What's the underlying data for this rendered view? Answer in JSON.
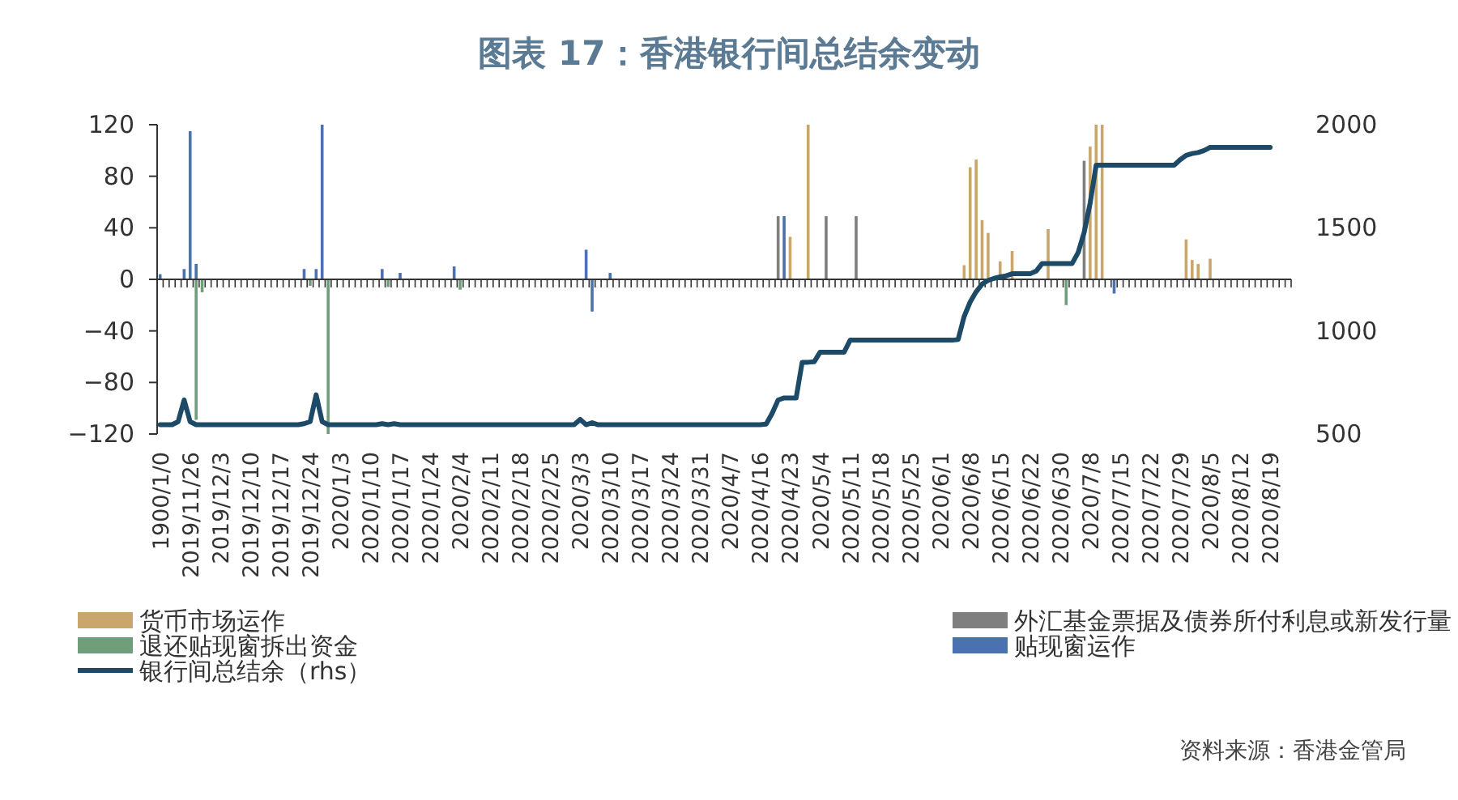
{
  "chart_data": {
    "type": "bar",
    "title": "图表 17：香港银行间总结余变动",
    "categories": [
      "1900/1/0",
      null,
      null,
      null,
      null,
      "2019/11/26",
      null,
      null,
      null,
      null,
      "2019/12/3",
      null,
      null,
      null,
      null,
      "2019/12/10",
      null,
      null,
      null,
      null,
      "2019/12/17",
      null,
      null,
      null,
      null,
      "2019/12/24",
      null,
      null,
      null,
      null,
      "2020/1/3",
      null,
      null,
      null,
      null,
      "2020/1/10",
      null,
      null,
      null,
      null,
      "2020/1/17",
      null,
      null,
      null,
      null,
      "2020/1/24",
      null,
      null,
      null,
      null,
      "2020/2/4",
      null,
      null,
      null,
      null,
      "2020/2/11",
      null,
      null,
      null,
      null,
      "2020/2/18",
      null,
      null,
      null,
      null,
      "2020/2/25",
      null,
      null,
      null,
      null,
      "2020/3/3",
      null,
      null,
      null,
      null,
      "2020/3/10",
      null,
      null,
      null,
      null,
      "2020/3/17",
      null,
      null,
      null,
      null,
      "2020/3/24",
      null,
      null,
      null,
      null,
      "2020/3/31",
      null,
      null,
      null,
      null,
      "2020/4/7",
      null,
      null,
      null,
      null,
      "2020/4/16",
      null,
      null,
      null,
      null,
      "2020/4/23",
      null,
      null,
      null,
      null,
      "2020/5/4",
      null,
      null,
      null,
      null,
      "2020/5/11",
      null,
      null,
      null,
      null,
      "2020/5/18",
      null,
      null,
      null,
      null,
      "2020/5/25",
      null,
      null,
      null,
      null,
      "2020/6/1",
      null,
      null,
      null,
      null,
      "2020/6/8",
      null,
      null,
      null,
      null,
      "2020/6/15",
      null,
      null,
      null,
      null,
      "2020/6/22",
      null,
      null,
      null,
      null,
      "2020/6/30",
      null,
      null,
      null,
      null,
      "2020/7/8",
      null,
      null,
      null,
      null,
      "2020/7/15",
      null,
      null,
      null,
      null,
      "2020/7/22",
      null,
      null,
      null,
      null,
      "2020/7/29",
      null,
      null,
      null,
      null,
      "2020/8/5",
      null,
      null,
      null,
      null,
      "2020/8/12",
      null,
      null,
      null,
      null,
      "2020/8/19",
      null,
      null,
      null
    ],
    "series": [
      {
        "name": "货币市场运作",
        "color": "#c9a66b",
        "values": [
          null,
          null,
          null,
          null,
          null,
          null,
          null,
          null,
          null,
          null,
          null,
          null,
          null,
          null,
          null,
          null,
          null,
          null,
          null,
          null,
          null,
          null,
          null,
          null,
          null,
          null,
          null,
          null,
          null,
          null,
          null,
          null,
          null,
          null,
          null,
          null,
          null,
          null,
          null,
          null,
          null,
          null,
          null,
          null,
          null,
          null,
          null,
          null,
          null,
          null,
          null,
          null,
          null,
          null,
          null,
          null,
          null,
          null,
          null,
          null,
          null,
          null,
          null,
          null,
          null,
          null,
          null,
          null,
          null,
          null,
          null,
          null,
          null,
          null,
          null,
          null,
          null,
          null,
          null,
          null,
          null,
          null,
          null,
          null,
          null,
          null,
          null,
          null,
          null,
          null,
          null,
          null,
          null,
          null,
          null,
          null,
          null,
          null,
          null,
          null,
          null,
          null,
          null,
          null,
          null,
          33,
          null,
          null,
          120,
          null,
          null,
          null,
          null,
          null,
          null,
          null,
          null,
          null,
          null,
          null,
          null,
          null,
          null,
          null,
          null,
          null,
          null,
          null,
          null,
          null,
          null,
          null,
          null,
          null,
          11,
          87,
          93,
          46,
          36,
          null,
          14,
          null,
          22,
          null,
          null,
          null,
          null,
          null,
          39,
          null,
          null,
          null,
          null,
          null,
          null,
          103,
          120,
          120,
          null,
          null,
          null,
          null,
          null,
          null,
          null,
          null,
          null,
          null,
          null,
          null,
          null,
          31,
          15,
          12,
          null,
          16,
          null,
          null,
          null,
          null,
          null,
          null,
          null,
          null,
          null,
          null,
          null,
          null,
          null
        ]
      },
      {
        "name": "外汇基金票据及债券所付利息或新发行量",
        "color": "#7f7f7f",
        "values": [
          null,
          null,
          null,
          null,
          null,
          null,
          null,
          null,
          null,
          null,
          null,
          null,
          null,
          null,
          null,
          null,
          null,
          null,
          null,
          null,
          null,
          null,
          null,
          null,
          null,
          null,
          null,
          null,
          null,
          null,
          null,
          null,
          null,
          null,
          null,
          null,
          null,
          null,
          null,
          null,
          null,
          null,
          null,
          null,
          null,
          null,
          null,
          null,
          null,
          null,
          null,
          null,
          null,
          null,
          null,
          null,
          null,
          null,
          null,
          null,
          null,
          null,
          null,
          null,
          null,
          null,
          null,
          null,
          null,
          null,
          null,
          null,
          null,
          null,
          null,
          null,
          null,
          null,
          null,
          null,
          null,
          null,
          null,
          null,
          null,
          null,
          null,
          null,
          null,
          null,
          null,
          null,
          null,
          null,
          null,
          null,
          null,
          null,
          null,
          null,
          null,
          null,
          null,
          49,
          null,
          null,
          null,
          null,
          null,
          null,
          null,
          49,
          null,
          null,
          null,
          null,
          49,
          null,
          null,
          null,
          null,
          null,
          null,
          null,
          null,
          null,
          null,
          null,
          null,
          null,
          null,
          null,
          null,
          null,
          null,
          null,
          null,
          null,
          null,
          null,
          null,
          null,
          null,
          null,
          null,
          null,
          null,
          null,
          null,
          null,
          null,
          null,
          null,
          null,
          92,
          null,
          null,
          null,
          null,
          null,
          null,
          null,
          null,
          null,
          null,
          null,
          null,
          null,
          null,
          null,
          null,
          null,
          null,
          null,
          null,
          null,
          null,
          null,
          null,
          null,
          null,
          null,
          null,
          null,
          null,
          null,
          null,
          null,
          null
        ]
      },
      {
        "name": "退还贴现窗拆出资金",
        "color": "#6f9e7a",
        "values": [
          null,
          null,
          null,
          null,
          null,
          null,
          -109,
          -10,
          null,
          null,
          null,
          null,
          null,
          null,
          null,
          null,
          null,
          null,
          null,
          null,
          null,
          null,
          null,
          null,
          null,
          -5,
          null,
          null,
          -120,
          null,
          null,
          null,
          null,
          null,
          null,
          null,
          null,
          null,
          -6,
          null,
          null,
          null,
          null,
          null,
          null,
          null,
          null,
          null,
          null,
          null,
          -8,
          null,
          null,
          null,
          null,
          null,
          null,
          null,
          null,
          null,
          null,
          null,
          null,
          null,
          null,
          null,
          null,
          null,
          null,
          null,
          null,
          null,
          null,
          null,
          null,
          null,
          null,
          null,
          null,
          null,
          null,
          null,
          null,
          null,
          null,
          null,
          null,
          null,
          null,
          null,
          null,
          null,
          null,
          null,
          null,
          null,
          null,
          null,
          null,
          null,
          null,
          null,
          null,
          null,
          null,
          null,
          null,
          null,
          null,
          null,
          null,
          null,
          null,
          null,
          null,
          null,
          null,
          null,
          null,
          null,
          null,
          null,
          null,
          null,
          null,
          null,
          null,
          null,
          null,
          null,
          null,
          null,
          null,
          null,
          null,
          null,
          null,
          null,
          null,
          null,
          null,
          null,
          null,
          null,
          null,
          null,
          null,
          null,
          null,
          null,
          null,
          -20,
          null,
          null,
          null,
          null,
          null,
          null,
          null,
          null,
          null,
          null,
          null,
          null,
          null,
          null,
          null,
          null,
          null,
          null,
          null,
          null,
          null,
          null,
          null,
          null,
          null,
          null,
          null,
          null,
          null,
          null,
          null,
          null,
          null,
          null,
          null,
          null,
          null
        ]
      },
      {
        "name": "贴现窗运作",
        "color": "#4a72b0",
        "values": [
          4,
          null,
          null,
          null,
          8,
          115,
          12,
          null,
          null,
          null,
          null,
          null,
          null,
          null,
          null,
          null,
          null,
          null,
          null,
          null,
          null,
          null,
          null,
          null,
          8,
          null,
          8,
          120,
          null,
          null,
          null,
          null,
          null,
          null,
          null,
          null,
          null,
          8,
          null,
          null,
          5,
          null,
          null,
          null,
          null,
          null,
          null,
          null,
          null,
          10,
          null,
          null,
          null,
          null,
          null,
          null,
          null,
          null,
          null,
          null,
          null,
          null,
          null,
          null,
          null,
          null,
          null,
          null,
          null,
          null,
          null,
          23,
          -25,
          null,
          null,
          5,
          null,
          null,
          null,
          null,
          null,
          null,
          null,
          null,
          null,
          null,
          null,
          null,
          null,
          null,
          null,
          null,
          null,
          null,
          null,
          null,
          null,
          null,
          null,
          null,
          null,
          null,
          null,
          null,
          49,
          null,
          null,
          null,
          null,
          null,
          null,
          null,
          null,
          null,
          null,
          null,
          null,
          null,
          null,
          null,
          null,
          null,
          null,
          null,
          null,
          null,
          null,
          null,
          null,
          null,
          null,
          null,
          null,
          null,
          null,
          null,
          null,
          null,
          null,
          null,
          null,
          null,
          null,
          null,
          null,
          null,
          null,
          null,
          null,
          null,
          null,
          null,
          null,
          null,
          null,
          null,
          null,
          null,
          null,
          -11,
          null,
          null,
          null,
          null,
          null,
          null,
          null,
          null,
          null,
          null,
          null,
          null,
          null,
          null,
          null,
          null,
          null,
          null,
          null,
          null,
          null,
          null,
          null,
          null,
          null,
          null,
          null,
          null,
          null
        ]
      },
      {
        "name": "银行间总结余（rhs）",
        "type": "line",
        "axis": "y2",
        "color": "#1d4a66",
        "values": [
          545,
          545,
          545,
          560,
          665,
          560,
          545,
          545,
          545,
          545,
          545,
          545,
          545,
          545,
          545,
          545,
          545,
          545,
          545,
          545,
          545,
          545,
          545,
          545,
          550,
          560,
          690,
          560,
          545,
          545,
          545,
          545,
          545,
          545,
          545,
          545,
          545,
          550,
          545,
          550,
          545,
          545,
          545,
          545,
          545,
          545,
          545,
          545,
          545,
          545,
          545,
          545,
          545,
          545,
          545,
          545,
          545,
          545,
          545,
          545,
          545,
          545,
          545,
          545,
          545,
          545,
          545,
          545,
          545,
          545,
          571,
          545,
          555,
          545,
          545,
          545,
          545,
          545,
          545,
          545,
          545,
          545,
          545,
          545,
          545,
          545,
          545,
          545,
          545,
          545,
          545,
          545,
          545,
          545,
          545,
          545,
          545,
          545,
          545,
          545,
          545,
          548,
          600,
          665,
          675,
          675,
          675,
          848,
          848,
          850,
          897,
          897,
          897,
          897,
          897,
          955,
          955,
          955,
          955,
          955,
          955,
          955,
          955,
          955,
          955,
          955,
          955,
          955,
          955,
          955,
          955,
          955,
          955,
          958,
          1070,
          1140,
          1190,
          1227,
          1245,
          1255,
          1262,
          1267,
          1277,
          1277,
          1277,
          1277,
          1290,
          1327,
          1327,
          1327,
          1327,
          1327,
          1327,
          1380,
          1477,
          1620,
          1804,
          1804,
          1804,
          1804,
          1804,
          1804,
          1804,
          1804,
          1804,
          1804,
          1804,
          1804,
          1804,
          1804,
          1830,
          1851,
          1860,
          1865,
          1875,
          1890,
          1890,
          1890,
          1890,
          1890,
          1890,
          1890,
          1890,
          1890,
          1890,
          1890,
          null,
          null,
          null
        ]
      }
    ],
    "ylim": [
      -120,
      120
    ],
    "yticks": [
      -120,
      -80,
      -40,
      0,
      40,
      80,
      120
    ],
    "y2lim": [
      500,
      2000
    ],
    "y2ticks": [
      500,
      1000,
      1500,
      2000
    ],
    "legend": "bottom",
    "annotations": [
      "资料来源：香港金管局"
    ]
  }
}
